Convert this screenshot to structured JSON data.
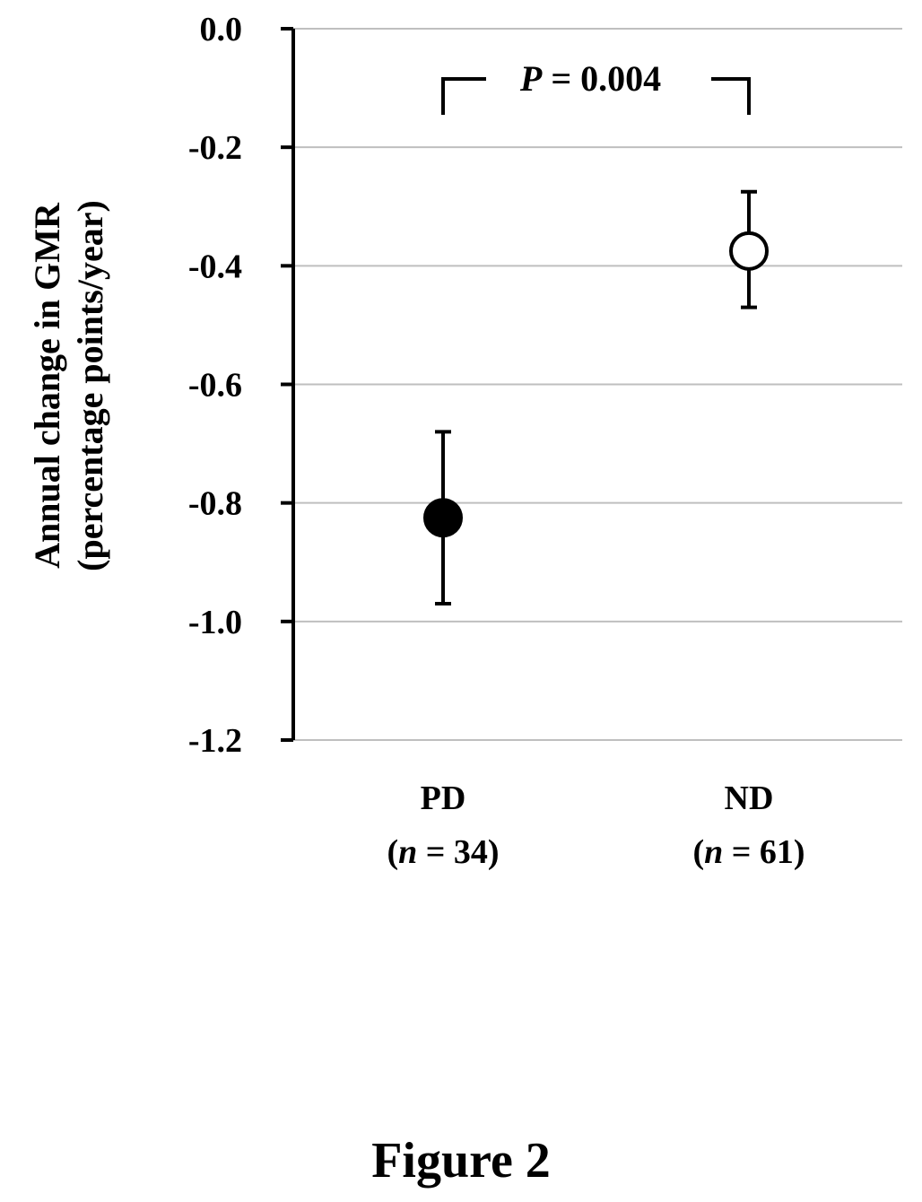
{
  "chart_data": {
    "type": "scatter",
    "ylabel_line1": "Annual change in GMR",
    "ylabel_line2": "(percentage points/year)",
    "yticks": [
      "0.0",
      "-0.2",
      "-0.4",
      "-0.6",
      "-0.8",
      "-1.0",
      "-1.2"
    ],
    "ylim": [
      -1.2,
      0.0
    ],
    "grid": true,
    "categories": [
      {
        "name": "PD",
        "n_prefix": "(",
        "n_var": "n",
        "n_rest": " = 34)",
        "mean": -0.825,
        "ci_low": -0.97,
        "ci_high": -0.68,
        "marker": "filled"
      },
      {
        "name": "ND",
        "n_prefix": "(",
        "n_var": "n",
        "n_rest": " = 61)",
        "mean": -0.375,
        "ci_low": -0.47,
        "ci_high": -0.275,
        "marker": "open"
      }
    ],
    "comparison": {
      "p_symbol": "P",
      "p_rest": " = 0.004"
    }
  },
  "caption": "Figure 2"
}
